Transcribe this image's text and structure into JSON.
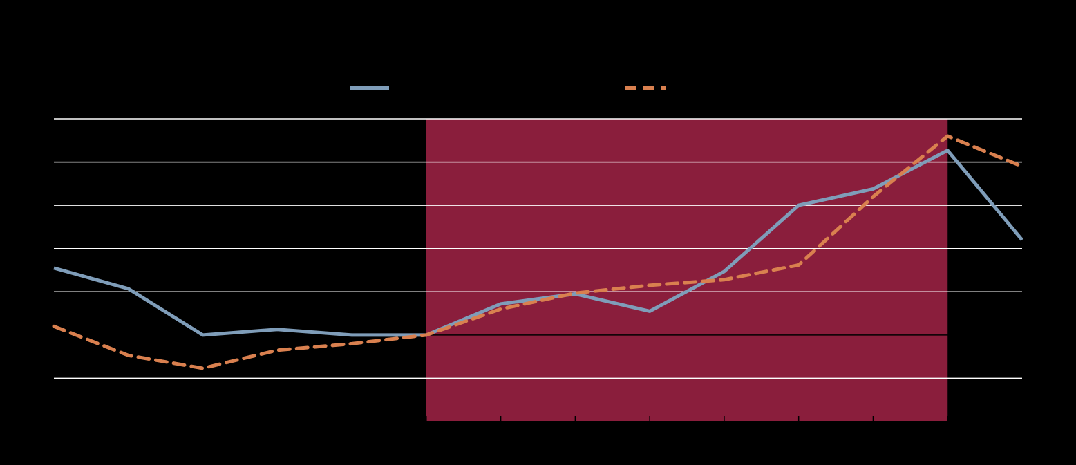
{
  "colors": {
    "background": "#000000",
    "highlight_band": "#8a1e3c",
    "gridline": "#ffffff",
    "axis": "#000000",
    "series_solid": "#7f9db9",
    "series_dashed": "#d9804f"
  },
  "chart_data": {
    "type": "line",
    "title": "",
    "xlabel": "",
    "ylabel": "",
    "x": [
      0,
      1,
      2,
      3,
      4,
      5,
      6,
      7,
      8,
      9,
      10,
      11,
      12,
      13
    ],
    "ylim": [
      -2,
      5
    ],
    "y_gridlines": [
      -1,
      1,
      2,
      3,
      4,
      5
    ],
    "baseline": 0,
    "grid": true,
    "legend": "top",
    "shaded_region": {
      "x_start": 5,
      "x_end": 12
    },
    "series": [
      {
        "style": "solid",
        "values": [
          1.55,
          1.07,
          0.0,
          0.13,
          0.0,
          0.0,
          0.72,
          0.95,
          0.55,
          1.47,
          3.0,
          3.38,
          4.27,
          2.2
        ]
      },
      {
        "style": "dashed",
        "values": [
          0.2,
          -0.47,
          -0.77,
          -0.35,
          -0.2,
          0.0,
          0.6,
          0.97,
          1.15,
          1.28,
          1.62,
          3.2,
          4.6,
          3.9
        ]
      }
    ]
  }
}
